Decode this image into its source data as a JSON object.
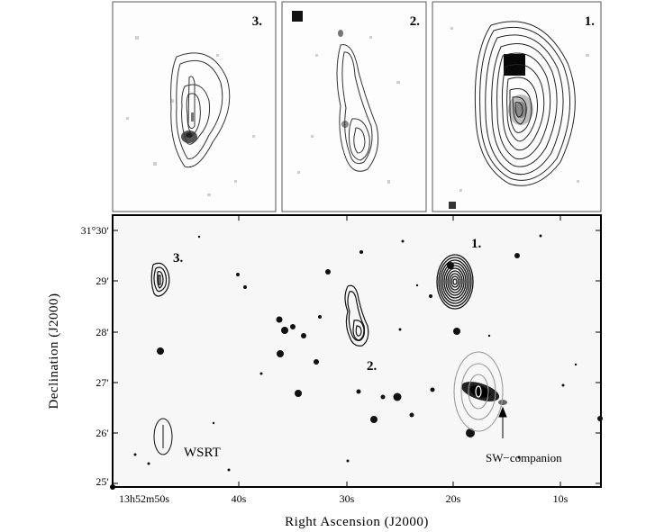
{
  "insets": [
    {
      "label": "3."
    },
    {
      "label": "2."
    },
    {
      "label": "1."
    }
  ],
  "main": {
    "sources": [
      {
        "label": "1."
      },
      {
        "label": "2."
      },
      {
        "label": "3."
      }
    ],
    "beam_label": "WSRT",
    "companion_label": "SW−companion"
  },
  "axes": {
    "xlabel": "Right Ascension (J2000)",
    "ylabel": "Declination (J2000)",
    "x_ticks": [
      {
        "text": "13h52m50s"
      },
      {
        "text": "40s"
      },
      {
        "text": "30s"
      },
      {
        "text": "20s"
      },
      {
        "text": "10s"
      }
    ],
    "y_ticks": [
      {
        "text": "31°30′"
      },
      {
        "text": "29′"
      },
      {
        "text": "28′"
      },
      {
        "text": "27′"
      },
      {
        "text": "26′"
      },
      {
        "text": "25′"
      }
    ]
  },
  "colors": {
    "frame": "#000000",
    "contour_dark": "#111111",
    "contour_grey": "#9a9a9a",
    "star": "#1a1a1a"
  }
}
